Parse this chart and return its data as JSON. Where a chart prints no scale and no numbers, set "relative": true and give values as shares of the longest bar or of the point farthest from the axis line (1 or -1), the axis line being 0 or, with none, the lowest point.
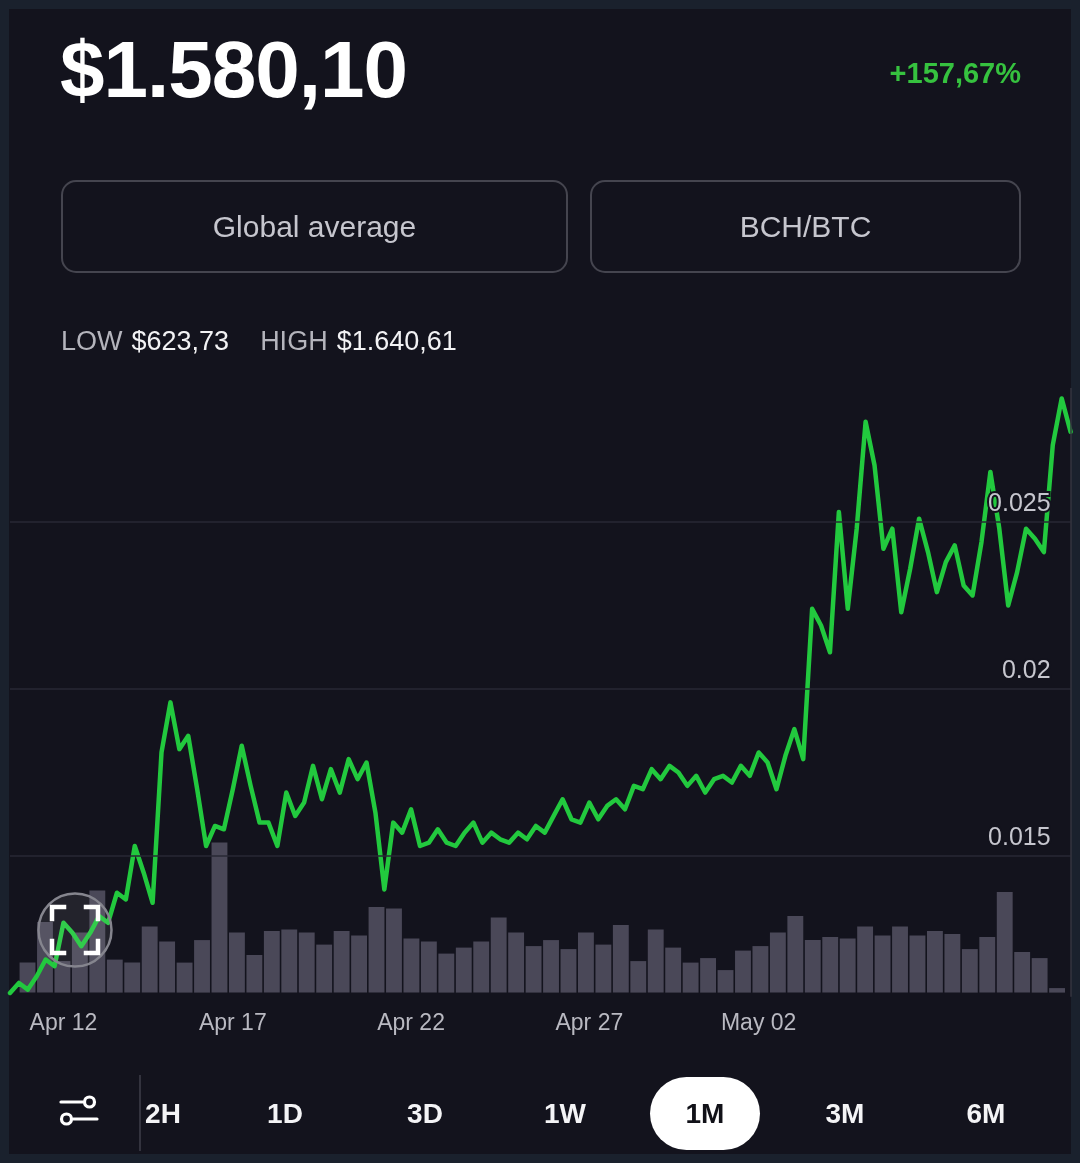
{
  "chart_data": [
    {
      "type": "line",
      "title": "$1.580,10",
      "subtitle": "+157,67%",
      "annotations": [
        "Global average",
        "BCH/BTC",
        "LOW",
        "$623,73",
        "HIGH",
        "$1.640,61",
        "2H",
        "1D",
        "3D",
        "1W",
        "1M",
        "3M",
        "6M"
      ],
      "categories": [
        null,
        null,
        null,
        null,
        null,
        null,
        "Apr 12",
        null,
        null,
        null,
        null,
        null,
        null,
        null,
        null,
        null,
        null,
        null,
        null,
        null,
        null,
        null,
        null,
        null,
        null,
        "Apr 17",
        null,
        null,
        null,
        null,
        null,
        null,
        null,
        null,
        null,
        null,
        null,
        null,
        null,
        null,
        null,
        null,
        null,
        null,
        null,
        "Apr 22",
        null,
        null,
        null,
        null,
        null,
        null,
        null,
        null,
        null,
        null,
        null,
        null,
        null,
        null,
        null,
        null,
        null,
        null,
        null,
        "Apr 27",
        null,
        null,
        null,
        null,
        null,
        null,
        null,
        null,
        null,
        null,
        null,
        null,
        null,
        null,
        null,
        null,
        null,
        null,
        "May 02",
        null,
        null,
        null,
        null,
        null,
        null,
        null,
        null,
        null,
        null,
        null,
        null,
        null,
        null,
        null,
        null,
        null,
        null,
        null,
        null,
        null,
        null,
        null,
        null,
        null,
        null,
        null,
        null,
        null,
        null,
        null,
        null,
        null,
        null,
        null
      ],
      "values": [
        0.0109,
        0.0112,
        0.011,
        0.0114,
        0.0119,
        0.0117,
        0.013,
        0.0127,
        0.0123,
        0.0127,
        0.0132,
        0.013,
        0.0139,
        0.0137,
        0.0153,
        0.0145,
        0.0136,
        0.0181,
        0.0196,
        0.0182,
        0.0186,
        0.017,
        0.0153,
        0.0159,
        0.0158,
        0.017,
        0.0183,
        0.0171,
        0.016,
        0.016,
        0.0153,
        0.0169,
        0.0162,
        0.0166,
        0.0177,
        0.0167,
        0.0176,
        0.0169,
        0.0179,
        0.0173,
        0.0178,
        0.0163,
        0.014,
        0.016,
        0.0157,
        0.0164,
        0.0153,
        0.0154,
        0.0158,
        0.0154,
        0.0153,
        0.0157,
        0.016,
        0.0154,
        0.0157,
        0.0155,
        0.0154,
        0.0157,
        0.0155,
        0.0159,
        0.0157,
        0.0162,
        0.0167,
        0.0161,
        0.016,
        0.0166,
        0.0161,
        0.0165,
        0.0167,
        0.0164,
        0.0171,
        0.017,
        0.0176,
        0.0173,
        0.0177,
        0.0175,
        0.0171,
        0.0174,
        0.0169,
        0.0173,
        0.0174,
        0.0172,
        0.0177,
        0.0174,
        0.0181,
        0.0178,
        0.017,
        0.018,
        0.0188,
        0.0179,
        0.0224,
        0.0219,
        0.0211,
        0.0253,
        0.0224,
        0.0248,
        0.028,
        0.0267,
        0.0242,
        0.0248,
        0.0223,
        0.0236,
        0.0251,
        0.0241,
        0.0229,
        0.0238,
        0.0243,
        0.0231,
        0.0228,
        0.0244,
        0.0265,
        0.0248,
        0.0225,
        0.0235,
        0.0248,
        0.0245,
        0.0241,
        0.0273,
        0.0287,
        0.0277
      ],
      "color": "#22c93e",
      "ylim": [
        0.0108,
        0.029
      ],
      "yticks": [
        0.015,
        0.02,
        0.025
      ],
      "grid": "y",
      "marker": "none"
    },
    {
      "type": "bar",
      "relative": true,
      "categories": [
        null,
        null,
        null,
        null,
        null,
        null,
        null,
        null,
        null,
        null,
        null,
        null,
        null,
        null,
        null,
        null,
        null,
        null,
        null,
        null,
        null,
        null,
        null,
        null,
        null,
        null,
        null,
        null,
        null,
        null,
        null,
        null,
        null,
        null,
        null,
        null,
        null,
        null,
        null,
        null,
        null,
        null,
        null,
        null,
        null,
        null,
        null,
        null,
        null,
        null,
        null,
        null,
        null,
        null,
        null,
        null,
        null,
        null,
        null,
        null
      ],
      "values": [
        0.2,
        0.47,
        0.21,
        0.4,
        0.68,
        0.22,
        0.2,
        0.44,
        0.34,
        0.2,
        0.35,
        1,
        0.4,
        0.25,
        0.41,
        0.42,
        0.4,
        0.32,
        0.41,
        0.38,
        0.57,
        0.56,
        0.36,
        0.34,
        0.26,
        0.3,
        0.34,
        0.5,
        0.4,
        0.31,
        0.35,
        0.29,
        0.4,
        0.32,
        0.45,
        0.21,
        0.42,
        0.3,
        0.2,
        0.23,
        0.15,
        0.28,
        0.31,
        0.4,
        0.51,
        0.35,
        0.37,
        0.36,
        0.44,
        0.38,
        0.44,
        0.38,
        0.41,
        0.39,
        0.29,
        0.37,
        0.67,
        0.27,
        0.23,
        0.03
      ],
      "color": "#4a4858"
    }
  ]
}
